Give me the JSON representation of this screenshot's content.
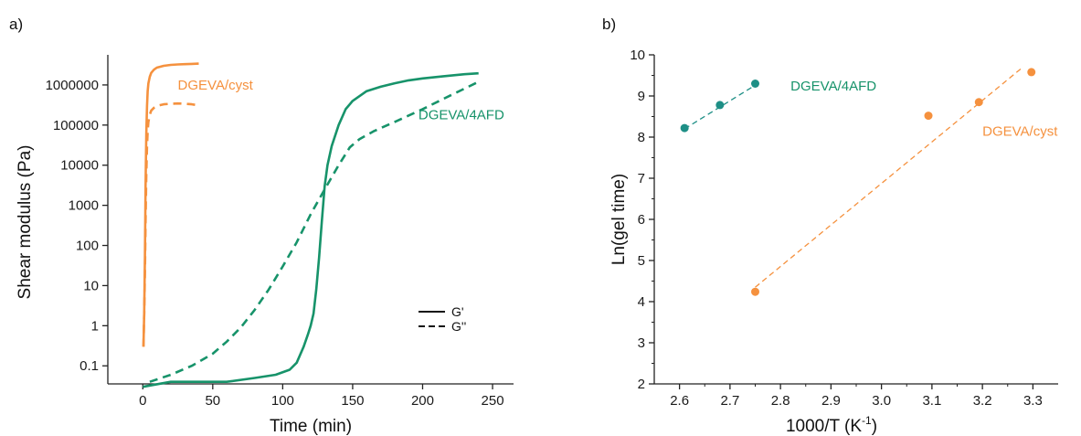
{
  "colors": {
    "orange": "#f5913e",
    "green": "#17936a",
    "teal": "#1e8f86",
    "axis": "#222222"
  },
  "chart_data": [
    {
      "panel_label": "a)",
      "type": "line",
      "xlabel": "Time (min)",
      "ylabel": "Shear modulus (Pa)",
      "xlim": [
        -25,
        265
      ],
      "ylim_log10": [
        -1.45,
        6.75
      ],
      "yscale": "log",
      "x_ticks": [
        0,
        50,
        100,
        150,
        200,
        250
      ],
      "x_tick_labels": [
        "0",
        "50",
        "100",
        "150",
        "200",
        "250"
      ],
      "y_ticks": [
        0.1,
        1,
        10,
        100,
        1000,
        10000,
        100000,
        1000000
      ],
      "y_tick_labels": [
        "0.1",
        "1",
        "10",
        "100",
        "1000",
        "10000",
        "100000",
        "1000000"
      ],
      "legend": {
        "position": "right-middle",
        "entries": [
          {
            "label": "G'",
            "dash": "solid"
          },
          {
            "label": "G''",
            "dash": "dashed"
          }
        ]
      },
      "annotations": [
        {
          "text": "DGEVA/cyst",
          "color_key": "orange",
          "x": 25,
          "y": 1000000
        },
        {
          "text": "DGEVA/4AFD",
          "color_key": "green",
          "x": 197,
          "y": 180000
        }
      ],
      "series": [
        {
          "system": "DGEVA/cyst",
          "modulus": "G'",
          "color_key": "orange",
          "dash": "solid",
          "x": [
            0.5,
            1,
            1.5,
            2,
            2.5,
            3,
            3.5,
            4,
            5,
            6,
            8,
            10,
            15,
            20,
            25,
            30,
            35,
            40
          ],
          "y": [
            0.3,
            2,
            50,
            3000,
            60000,
            300000,
            700000,
            1100000,
            1600000,
            2000000,
            2400000,
            2700000,
            3000000,
            3150000,
            3250000,
            3300000,
            3350000,
            3400000
          ]
        },
        {
          "system": "DGEVA/cyst",
          "modulus": "G''",
          "color_key": "orange",
          "dash": "dashed",
          "x": [
            0.5,
            1,
            1.5,
            2,
            2.5,
            3,
            3.5,
            4,
            5,
            6,
            8,
            10,
            15,
            20,
            25,
            30,
            35,
            40
          ],
          "y": [
            0.3,
            2,
            20,
            400,
            6000,
            30000,
            70000,
            120000,
            180000,
            230000,
            270000,
            300000,
            330000,
            340000,
            345000,
            340000,
            330000,
            310000
          ]
        },
        {
          "system": "DGEVA/4AFD",
          "modulus": "G'",
          "color_key": "green",
          "dash": "solid",
          "x": [
            0,
            20,
            40,
            60,
            80,
            95,
            105,
            110,
            115,
            118,
            120,
            122,
            124,
            126,
            128,
            130,
            132,
            135,
            140,
            145,
            150,
            160,
            170,
            180,
            190,
            200,
            215,
            230,
            240
          ],
          "y": [
            0.03,
            0.04,
            0.04,
            0.04,
            0.05,
            0.06,
            0.08,
            0.12,
            0.3,
            0.6,
            1,
            2,
            8,
            50,
            400,
            3000,
            10000,
            30000,
            100000,
            250000,
            400000,
            700000,
            900000,
            1100000,
            1300000,
            1450000,
            1650000,
            1850000,
            1950000
          ]
        },
        {
          "system": "DGEVA/4AFD",
          "modulus": "G''",
          "color_key": "green",
          "dash": "dashed",
          "x": [
            5,
            20,
            35,
            50,
            60,
            70,
            80,
            90,
            100,
            110,
            120,
            130,
            140,
            148,
            155,
            165,
            180,
            200,
            220,
            240
          ],
          "y": [
            0.04,
            0.06,
            0.1,
            0.2,
            0.4,
            0.9,
            2.5,
            8,
            30,
            120,
            600,
            2500,
            10000,
            28000,
            45000,
            70000,
            120000,
            250000,
            550000,
            1200000
          ]
        }
      ]
    },
    {
      "panel_label": "b)",
      "type": "scatter",
      "xlabel": "1000/T (K",
      "xlabel_sup": "-1",
      "xlabel_close": ")",
      "ylabel": "Ln(gel time)",
      "xlim": [
        2.55,
        3.35
      ],
      "ylim": [
        2,
        10
      ],
      "x_ticks": [
        2.6,
        2.7,
        2.8,
        2.9,
        3.0,
        3.1,
        3.2,
        3.3
      ],
      "x_tick_labels": [
        "2.6",
        "2.7",
        "2.8",
        "2.9",
        "3.0",
        "3.1",
        "3.2",
        "3.3"
      ],
      "y_ticks": [
        2,
        3,
        4,
        5,
        6,
        7,
        8,
        9,
        10
      ],
      "y_tick_labels": [
        "2",
        "3",
        "4",
        "5",
        "6",
        "7",
        "8",
        "9",
        "10"
      ],
      "annotations": [
        {
          "text": "DGEVA/4AFD",
          "color_key": "green",
          "x": 2.82,
          "y": 9.25
        },
        {
          "text": "DGEVA/cyst",
          "color_key": "orange",
          "x": 3.2,
          "y": 8.15
        }
      ],
      "series": [
        {
          "system": "DGEVA/4AFD",
          "color_key": "teal",
          "x": [
            2.61,
            2.68,
            2.75
          ],
          "y": [
            8.22,
            8.78,
            9.3
          ],
          "fit": {
            "x": [
              2.61,
              2.755
            ],
            "y": [
              8.2,
              9.3
            ]
          }
        },
        {
          "system": "DGEVA/cyst",
          "color_key": "orange",
          "x": [
            2.75,
            3.093,
            3.193,
            3.297
          ],
          "y": [
            4.24,
            8.52,
            8.85,
            9.58
          ],
          "fit": {
            "x": [
              2.75,
              3.28
            ],
            "y": [
              4.35,
              9.7
            ]
          }
        }
      ]
    }
  ]
}
